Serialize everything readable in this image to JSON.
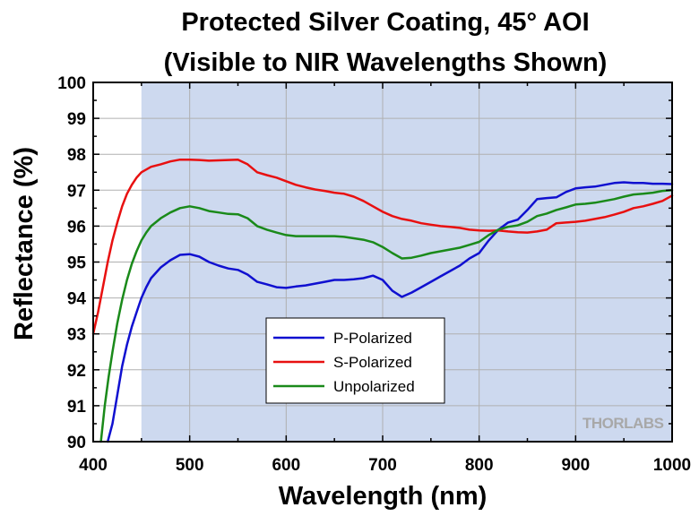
{
  "chart_data": {
    "type": "line",
    "title": [
      "Protected Silver Coating, 45° AOI",
      "(Visible to NIR Wavelengths Shown)"
    ],
    "xlabel": "Wavelength (nm)",
    "ylabel": "Reflectance (%)",
    "xlim": [
      400,
      1000
    ],
    "ylim": [
      90,
      100
    ],
    "xticks": [
      "400",
      "500",
      "600",
      "700",
      "800",
      "900",
      "1000"
    ],
    "yticks": [
      "90",
      "91",
      "92",
      "93",
      "94",
      "95",
      "96",
      "97",
      "98",
      "99",
      "100"
    ],
    "grid": true,
    "shaded_region": {
      "x_start": 450,
      "x_end": 1000,
      "color": "#cdd9ef"
    },
    "legend": {
      "position": "lower-center"
    },
    "watermark": "THORLABS",
    "series": [
      {
        "name": "P-Polarized",
        "color": "#1010d0",
        "x": [
          415,
          420,
          425,
          430,
          435,
          440,
          445,
          450,
          455,
          460,
          470,
          480,
          490,
          500,
          510,
          520,
          530,
          540,
          550,
          560,
          570,
          580,
          590,
          600,
          610,
          620,
          630,
          640,
          650,
          660,
          670,
          680,
          690,
          700,
          710,
          720,
          730,
          740,
          750,
          760,
          770,
          780,
          790,
          800,
          810,
          820,
          830,
          840,
          850,
          860,
          870,
          880,
          890,
          900,
          910,
          920,
          930,
          940,
          950,
          960,
          970,
          980,
          990,
          1000
        ],
        "y": [
          90.0,
          90.5,
          91.3,
          92.1,
          92.7,
          93.2,
          93.6,
          94.0,
          94.3,
          94.55,
          94.85,
          95.05,
          95.2,
          95.22,
          95.15,
          95.0,
          94.9,
          94.82,
          94.78,
          94.65,
          94.45,
          94.38,
          94.3,
          94.28,
          94.32,
          94.35,
          94.4,
          94.45,
          94.5,
          94.5,
          94.52,
          94.55,
          94.62,
          94.5,
          94.2,
          94.03,
          94.15,
          94.3,
          94.45,
          94.6,
          94.75,
          94.9,
          95.1,
          95.25,
          95.6,
          95.9,
          96.1,
          96.18,
          96.45,
          96.75,
          96.78,
          96.8,
          96.95,
          97.05,
          97.08,
          97.1,
          97.15,
          97.2,
          97.22,
          97.2,
          97.2,
          97.18,
          97.18,
          97.17
        ]
      },
      {
        "name": "S-Polarized",
        "color": "#e81010",
        "x": [
          400,
          405,
          410,
          415,
          420,
          425,
          430,
          435,
          440,
          445,
          450,
          460,
          470,
          480,
          490,
          500,
          510,
          520,
          530,
          540,
          550,
          560,
          570,
          580,
          590,
          600,
          610,
          620,
          630,
          640,
          650,
          660,
          670,
          680,
          690,
          700,
          710,
          720,
          730,
          740,
          750,
          760,
          770,
          780,
          790,
          800,
          810,
          820,
          830,
          840,
          850,
          860,
          870,
          880,
          890,
          900,
          910,
          920,
          930,
          940,
          950,
          960,
          970,
          980,
          990,
          1000
        ],
        "y": [
          93.0,
          93.6,
          94.3,
          95.0,
          95.6,
          96.1,
          96.55,
          96.9,
          97.15,
          97.35,
          97.5,
          97.65,
          97.72,
          97.8,
          97.85,
          97.85,
          97.84,
          97.82,
          97.83,
          97.84,
          97.85,
          97.72,
          97.5,
          97.42,
          97.35,
          97.25,
          97.15,
          97.08,
          97.02,
          96.98,
          96.93,
          96.9,
          96.82,
          96.7,
          96.55,
          96.4,
          96.28,
          96.2,
          96.15,
          96.08,
          96.04,
          96.0,
          95.98,
          95.95,
          95.9,
          95.88,
          95.87,
          95.88,
          95.85,
          95.83,
          95.82,
          95.85,
          95.9,
          96.08,
          96.1,
          96.12,
          96.15,
          96.2,
          96.25,
          96.32,
          96.4,
          96.5,
          96.55,
          96.62,
          96.7,
          96.85
        ]
      },
      {
        "name": "Unpolarized",
        "color": "#1a8a1a",
        "x": [
          408,
          412,
          416,
          420,
          425,
          430,
          435,
          440,
          445,
          450,
          455,
          460,
          470,
          480,
          490,
          500,
          510,
          520,
          530,
          540,
          550,
          560,
          570,
          580,
          590,
          600,
          610,
          620,
          630,
          640,
          650,
          660,
          670,
          680,
          690,
          700,
          710,
          720,
          730,
          740,
          750,
          760,
          770,
          780,
          790,
          800,
          810,
          820,
          830,
          840,
          850,
          860,
          870,
          880,
          890,
          900,
          910,
          920,
          930,
          940,
          950,
          960,
          970,
          980,
          990,
          1000
        ],
        "y": [
          90.0,
          91.0,
          91.8,
          92.5,
          93.3,
          93.95,
          94.5,
          94.95,
          95.3,
          95.6,
          95.82,
          96.0,
          96.22,
          96.38,
          96.5,
          96.55,
          96.5,
          96.42,
          96.38,
          96.34,
          96.33,
          96.22,
          96.0,
          95.9,
          95.82,
          95.75,
          95.72,
          95.72,
          95.72,
          95.72,
          95.72,
          95.7,
          95.66,
          95.62,
          95.55,
          95.42,
          95.25,
          95.1,
          95.12,
          95.18,
          95.25,
          95.3,
          95.35,
          95.4,
          95.48,
          95.56,
          95.75,
          95.9,
          95.98,
          96.02,
          96.12,
          96.28,
          96.35,
          96.45,
          96.52,
          96.6,
          96.62,
          96.65,
          96.7,
          96.75,
          96.82,
          96.88,
          96.9,
          96.93,
          96.98,
          97.0
        ]
      }
    ]
  }
}
